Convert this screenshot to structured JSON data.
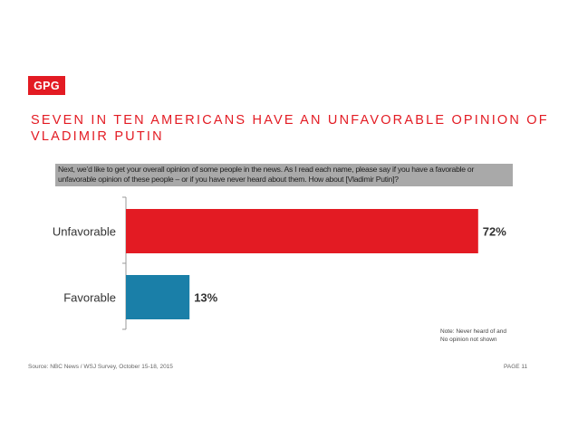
{
  "logo": "GPG",
  "title_line1": "SEVEN IN TEN AMERICANS HAVE AN UNFAVORABLE OPINION OF",
  "title_line2": "VLADIMIR PUTIN",
  "question": "Next, we’d like to get your overall opinion of some people in the news. As I read each name, please say if you have a favorable or unfavorable opinion of these people – or if you have never heard about them. How about [Vladimir Putin]?",
  "note": "Note: Never heard of and No opinion not shown",
  "source": "Source: NBC News / WSJ Survey, October 15-18, 2015",
  "page": "PAGE 11",
  "colors": {
    "accent": "#e31b23",
    "unfavorable": "#e31b23",
    "favorable": "#1a7fa8",
    "question_bg": "#a9a9a9"
  },
  "chart_data": {
    "type": "bar",
    "orientation": "horizontal",
    "categories": [
      "Unfavorable",
      "Favorable"
    ],
    "values": [
      72,
      13
    ],
    "value_labels": [
      "72%",
      "13%"
    ],
    "colors": [
      "#e31b23",
      "#1a7fa8"
    ],
    "xlim": [
      0,
      100
    ]
  }
}
